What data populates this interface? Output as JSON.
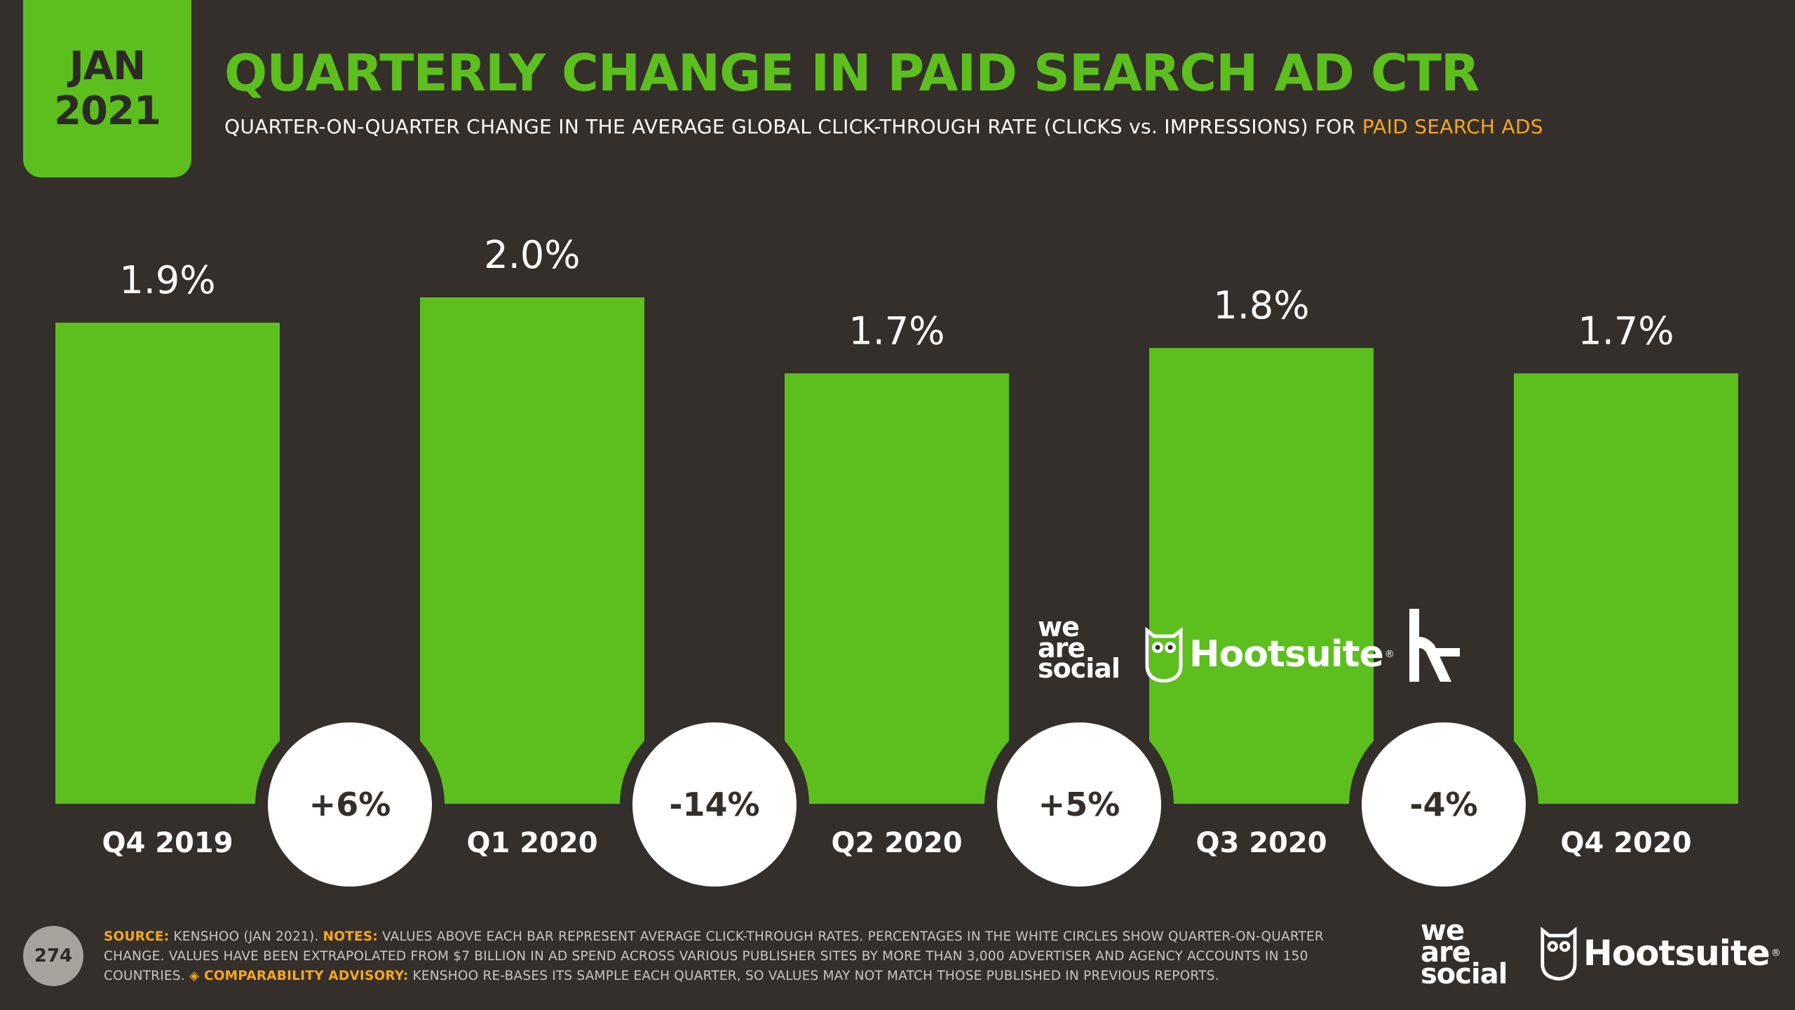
{
  "header": {
    "month": "JAN",
    "year": "2021",
    "title": "QUARTERLY CHANGE IN PAID SEARCH AD CTR",
    "subtitle_main": "QUARTER-ON-QUARTER CHANGE IN THE AVERAGE GLOBAL CLICK-THROUGH RATE (CLICKS vs. IMPRESSIONS) FOR ",
    "subtitle_highlight": "PAID SEARCH ADS"
  },
  "colors": {
    "background": "#342f2b",
    "bar": "#5cbf1e",
    "highlight": "#f5a623",
    "circle": "#ffffff"
  },
  "chart_data": {
    "type": "bar",
    "categories": [
      "Q4 2019",
      "Q1 2020",
      "Q2 2020",
      "Q3 2020",
      "Q4 2020"
    ],
    "values": [
      1.9,
      2.0,
      1.7,
      1.8,
      1.7
    ],
    "value_labels": [
      "1.9%",
      "2.0%",
      "1.7%",
      "1.8%",
      "1.7%"
    ],
    "changes": [
      "+6%",
      "-14%",
      "+5%",
      "-4%"
    ],
    "ylim": [
      0,
      2.0
    ],
    "grid": false,
    "legend": "none"
  },
  "brands": {
    "partner_we": "we",
    "partner_are": "are",
    "partner_social": "social",
    "partner_hootsuite": "Hootsuite",
    "partner_reg": "®",
    "kenshoo_mark": "k"
  },
  "footer": {
    "page_number": "274",
    "source_key": "SOURCE:",
    "source_text": " KENSHOO (JAN 2021). ",
    "notes_key": "NOTES:",
    "notes_text": " VALUES ABOVE EACH BAR REPRESENT AVERAGE CLICK-THROUGH RATES. PERCENTAGES IN THE WHITE CIRCLES SHOW QUARTER-ON-QUARTER CHANGE. VALUES HAVE BEEN EXTRAPOLATED FROM $7 BILLION IN AD SPEND ACROSS VARIOUS PUBLISHER SITES BY MORE THAN 3,000 ADVERTISER AND AGENCY ACCOUNTS IN 150 COUNTRIES. ",
    "advisory_key": "◈ COMPARABILITY ADVISORY:",
    "advisory_text": " KENSHOO RE-BASES ITS SAMPLE EACH QUARTER, SO VALUES MAY NOT MATCH THOSE PUBLISHED IN PREVIOUS REPORTS.",
    "we": "we",
    "are": "are",
    "social": "social",
    "hootsuite": "Hootsuite",
    "reg": "®"
  }
}
